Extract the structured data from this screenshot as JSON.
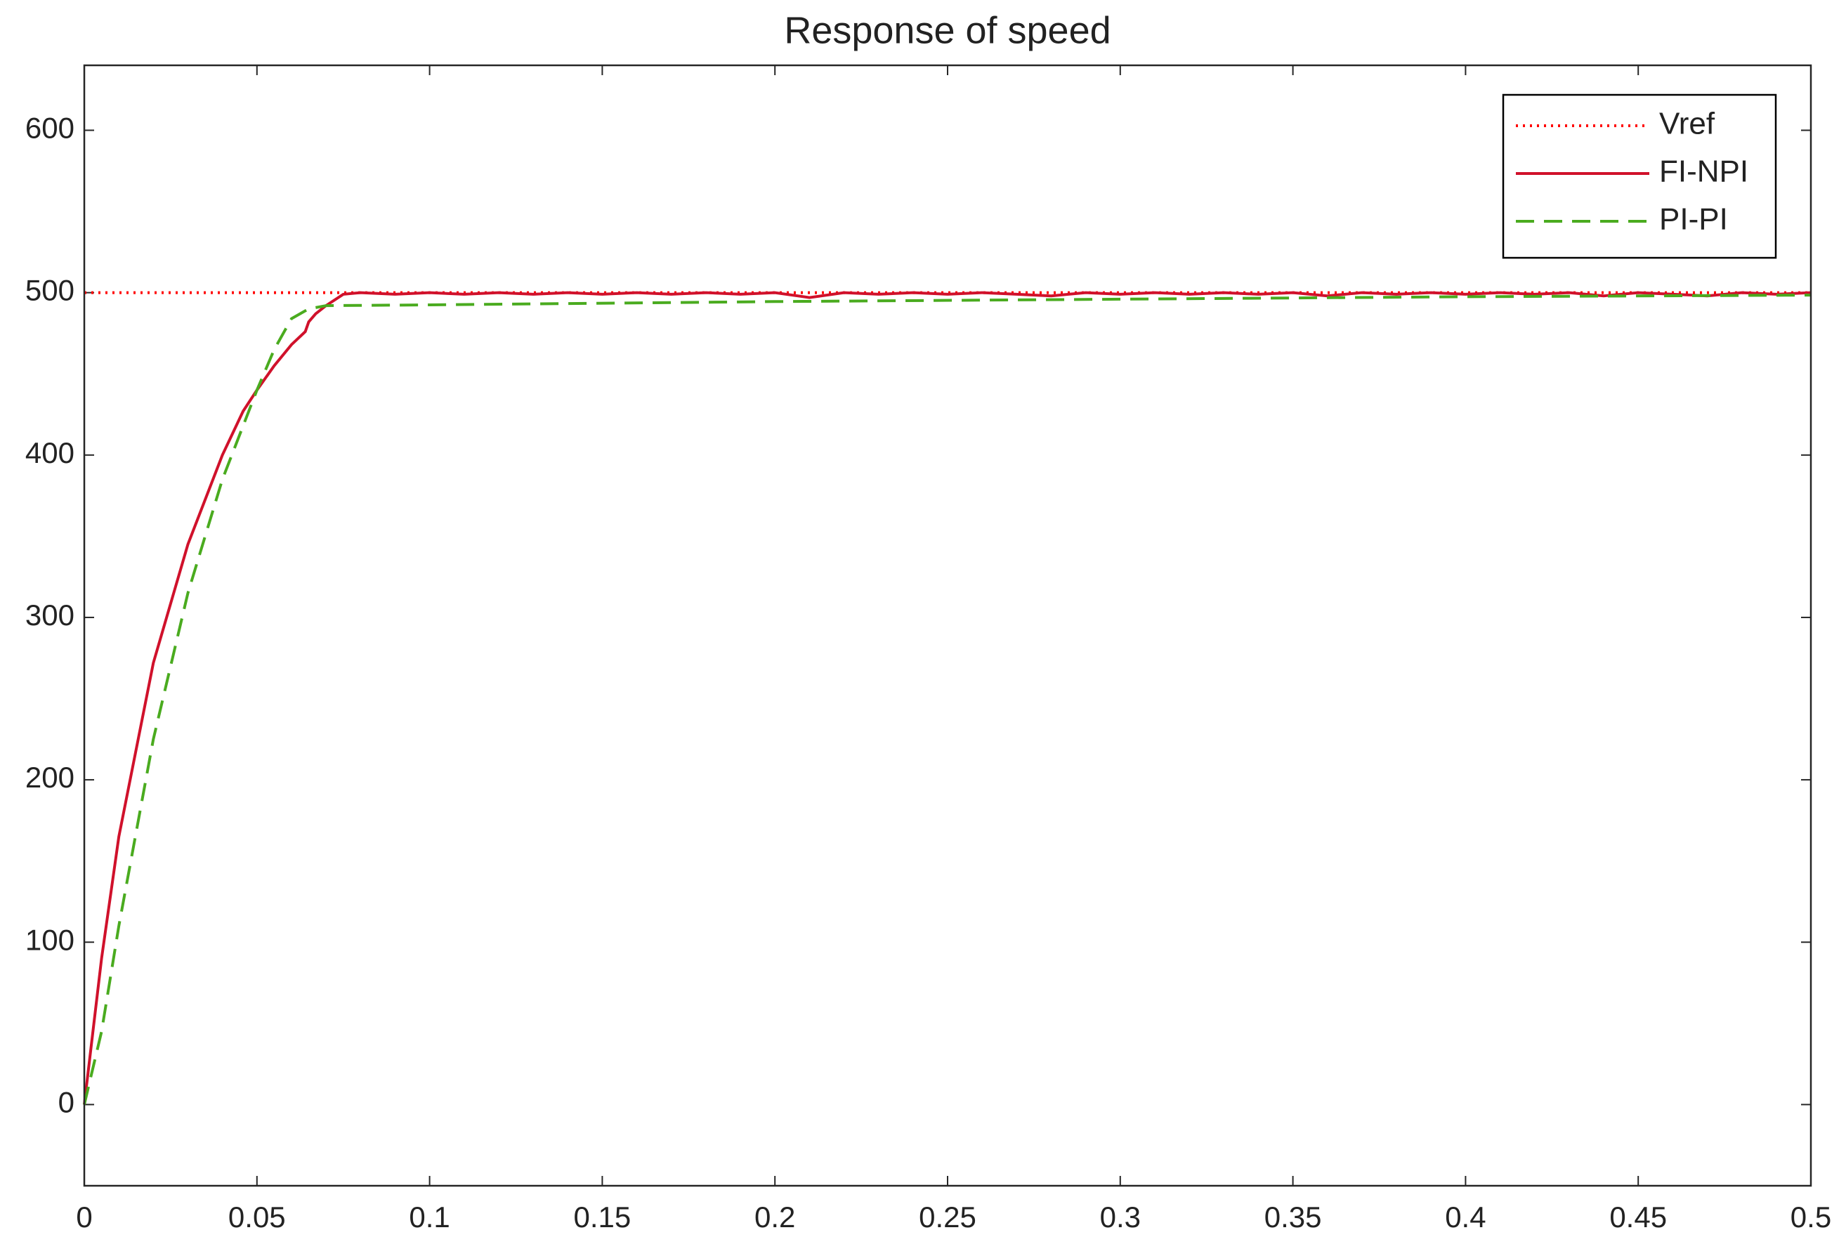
{
  "chart_data": {
    "type": "line",
    "title": "Response of speed",
    "xlim": [
      0,
      0.5
    ],
    "ylim": [
      -50,
      640
    ],
    "xticks": [
      0,
      0.05,
      0.1,
      0.15,
      0.2,
      0.25,
      0.3,
      0.35,
      0.4,
      0.45,
      0.5
    ],
    "yticks": [
      0,
      100,
      200,
      300,
      400,
      500,
      600
    ],
    "grid": false,
    "legend_position": "upper-right",
    "series": [
      {
        "name": "Vref",
        "color": "#ff0000",
        "dash": "dotted",
        "x": [
          0,
          0.5
        ],
        "values": [
          500,
          500
        ]
      },
      {
        "name": "FI-NPI",
        "color": "#d0112b",
        "dash": "solid",
        "x": [
          0,
          0.005,
          0.01,
          0.02,
          0.03,
          0.04,
          0.046,
          0.05,
          0.055,
          0.06,
          0.064,
          0.065,
          0.067,
          0.07,
          0.075,
          0.08,
          0.09,
          0.1,
          0.11,
          0.12,
          0.13,
          0.14,
          0.15,
          0.16,
          0.17,
          0.18,
          0.19,
          0.2,
          0.21,
          0.22,
          0.23,
          0.24,
          0.25,
          0.26,
          0.27,
          0.28,
          0.29,
          0.3,
          0.31,
          0.32,
          0.33,
          0.34,
          0.35,
          0.36,
          0.37,
          0.38,
          0.39,
          0.4,
          0.41,
          0.42,
          0.43,
          0.44,
          0.45,
          0.46,
          0.47,
          0.48,
          0.49,
          0.5
        ],
        "values": [
          0,
          90,
          165,
          272,
          345,
          400,
          427,
          440,
          455,
          468,
          476,
          482,
          487,
          492,
          499,
          500,
          499,
          500,
          499,
          500,
          499,
          500,
          499,
          500,
          499,
          500,
          499,
          500,
          497,
          500,
          499,
          500,
          499,
          500,
          499,
          498,
          500,
          499,
          500,
          499,
          500,
          499,
          500,
          498,
          500,
          499,
          500,
          499,
          500,
          499,
          500,
          498,
          500,
          499,
          498,
          500,
          499,
          500
        ]
      },
      {
        "name": "PI-PI",
        "color": "#4aab1f",
        "dash": "dashed",
        "x": [
          0,
          0.005,
          0.01,
          0.02,
          0.03,
          0.04,
          0.05,
          0.055,
          0.06,
          0.065,
          0.07,
          0.1,
          0.2,
          0.3,
          0.4,
          0.5
        ],
        "values": [
          0,
          45,
          110,
          225,
          315,
          385,
          440,
          465,
          484,
          490,
          492,
          492.5,
          494.5,
          496,
          497.5,
          498.5
        ]
      }
    ]
  }
}
